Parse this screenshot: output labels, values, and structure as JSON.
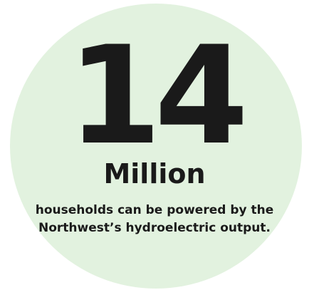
{
  "stat": {
    "number": "14",
    "unit": "Million",
    "caption_lines": [
      "households can be powered by the",
      "Northwest’s hydroelectric output."
    ]
  },
  "colors": {
    "circle_fill": "#e2f2df",
    "text": "#1a1a1a",
    "background": "#ffffff"
  }
}
